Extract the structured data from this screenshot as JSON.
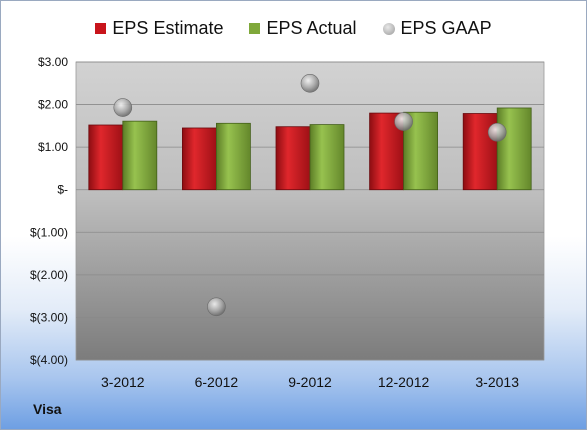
{
  "company": "Visa",
  "chart_data": {
    "type": "bar",
    "categories": [
      "3-2012",
      "6-2012",
      "9-2012",
      "12-2012",
      "3-2013"
    ],
    "series": [
      {
        "name": "EPS Estimate",
        "values": [
          1.52,
          1.45,
          1.48,
          1.8,
          1.79
        ],
        "color": "#c8141b"
      },
      {
        "name": "EPS Actual",
        "values": [
          1.61,
          1.56,
          1.53,
          1.82,
          1.92
        ],
        "color": "#7fa83a"
      },
      {
        "name": "EPS GAAP",
        "values": [
          1.93,
          -2.75,
          2.5,
          1.6,
          1.35
        ],
        "color": "#a8a8a8",
        "marker": "circle"
      }
    ],
    "ylim": [
      -4,
      3
    ],
    "yticks": [
      3,
      2,
      1,
      0,
      -1,
      -2,
      -3,
      -4
    ],
    "ytick_labels": [
      "$3.00",
      "$2.00",
      "$1.00",
      "$-",
      "$(1.00)",
      "$(2.00)",
      "$(3.00)",
      "$(4.00)"
    ],
    "grid": true,
    "legend": "top"
  }
}
